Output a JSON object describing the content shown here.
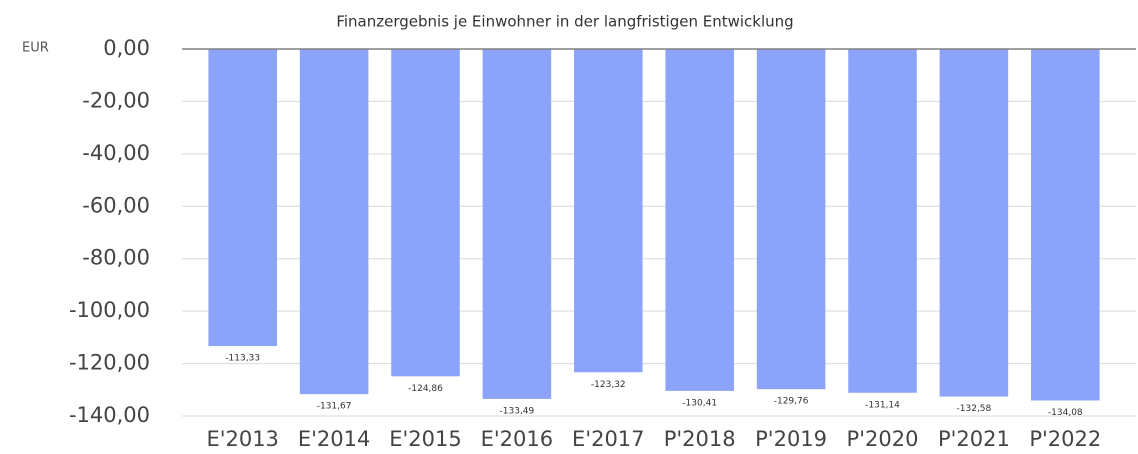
{
  "chart_data": {
    "type": "bar",
    "title": "Finanzergebnis je Einwohner in der langfristigen Entwicklung",
    "y_axis_label": "EUR",
    "categories": [
      "E'2013",
      "E'2014",
      "E'2015",
      "E'2016",
      "E'2017",
      "P'2018",
      "P'2019",
      "P'2020",
      "P'2021",
      "P'2022"
    ],
    "values": [
      -113.33,
      -131.67,
      -124.86,
      -133.49,
      -123.32,
      -130.41,
      -129.76,
      -131.14,
      -132.58,
      -134.08
    ],
    "value_labels": [
      "-113,33",
      "-131,67",
      "-124,86",
      "-133,49",
      "-123,32",
      "-130,41",
      "-129,76",
      "-131,14",
      "-132,58",
      "-134,08"
    ],
    "color": "#8ba3f8",
    "ylim": [
      -140,
      0
    ],
    "yticks": [
      {
        "value": 0,
        "label": "0,00"
      },
      {
        "value": -20,
        "label": "-20,00"
      },
      {
        "value": -40,
        "label": "-40,00"
      },
      {
        "value": -60,
        "label": "-60,00"
      },
      {
        "value": -80,
        "label": "-80,00"
      },
      {
        "value": -100,
        "label": "-100,00"
      },
      {
        "value": -120,
        "label": "-120,00"
      },
      {
        "value": -140,
        "label": "-140,00"
      }
    ],
    "grid": true
  }
}
